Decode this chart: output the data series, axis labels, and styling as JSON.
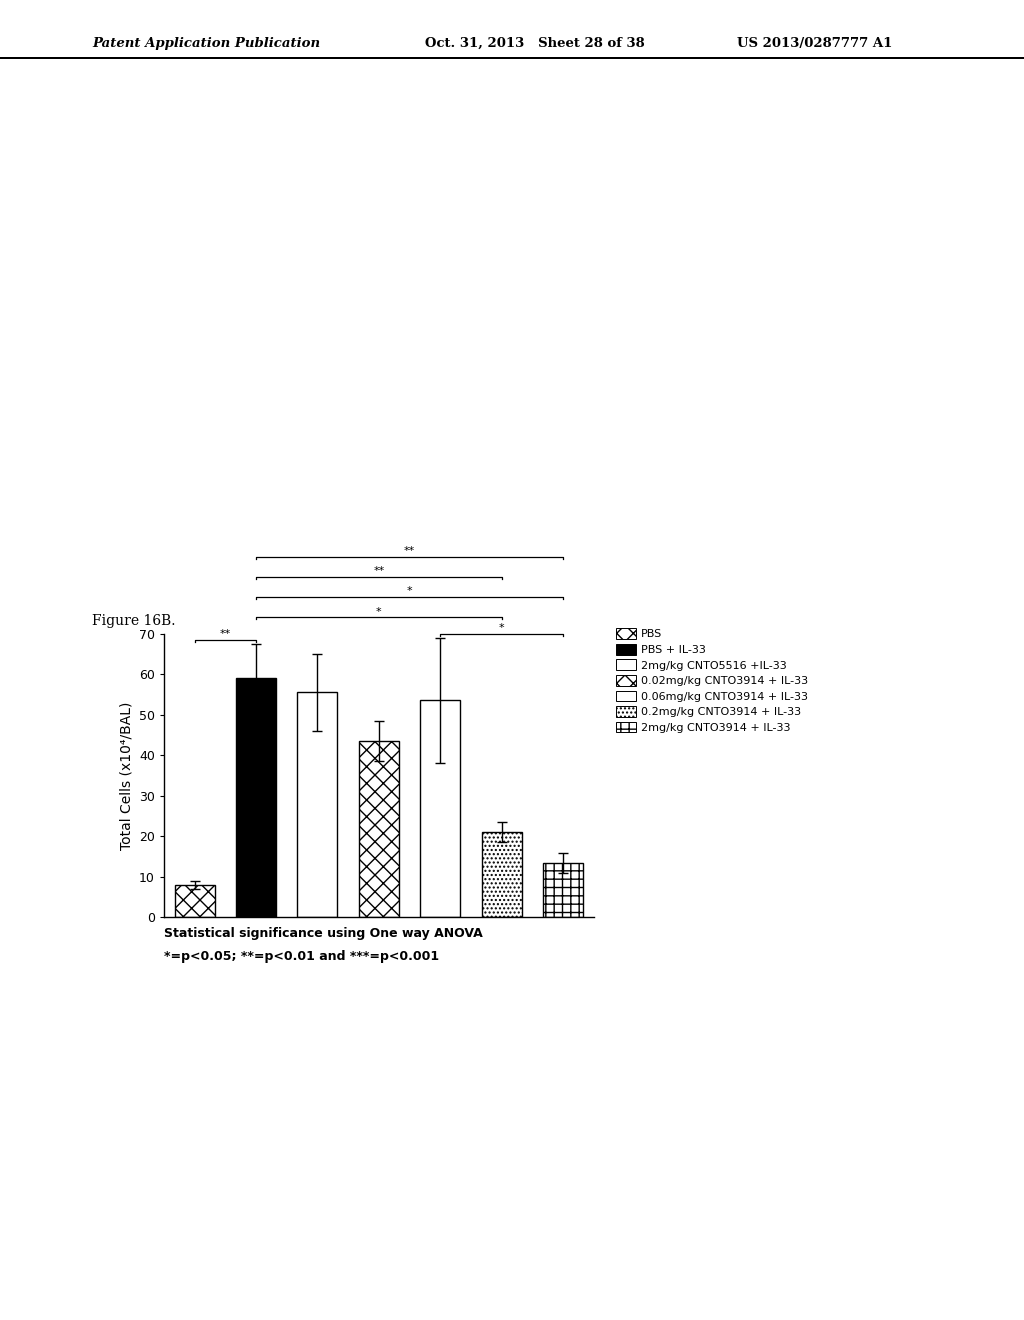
{
  "values": [
    8,
    59,
    55.5,
    43.5,
    53.5,
    21,
    13.5
  ],
  "errors": [
    1.0,
    8.5,
    9.5,
    5.0,
    15.5,
    2.5,
    2.5
  ],
  "ylim": [
    0,
    70
  ],
  "yticks": [
    0,
    10,
    20,
    30,
    40,
    50,
    60,
    70
  ],
  "ylabel": "Total Cells (x10⁴/BAL)",
  "figure_label": "Figure 16B.",
  "footnote_line1": "Statistical significance using One way ANOVA",
  "footnote_line2": "*=p<0.05; **=p<0.01 and ***=p<0.001",
  "legend_labels": [
    "PBS",
    "PBS + IL-33",
    "2mg/kg CNTO5516 +IL-33",
    "0.02mg/kg CNTO3914 + IL-33",
    "0.06mg/kg CNTO3914 + IL-33",
    "0.2mg/kg CNTO3914 + IL-33",
    "2mg/kg CNTO3914 + IL-33"
  ],
  "header_left": "Patent Application Publication",
  "header_mid": "Oct. 31, 2013   Sheet 28 of 38",
  "header_right": "US 2013/0287777 A1",
  "bar_width": 0.65,
  "hatch_patterns": [
    "xx",
    "",
    "====",
    "xx",
    "",
    "....",
    "++"
  ],
  "face_colors": [
    "white",
    "black",
    "white",
    "white",
    "white",
    "white",
    "white"
  ]
}
